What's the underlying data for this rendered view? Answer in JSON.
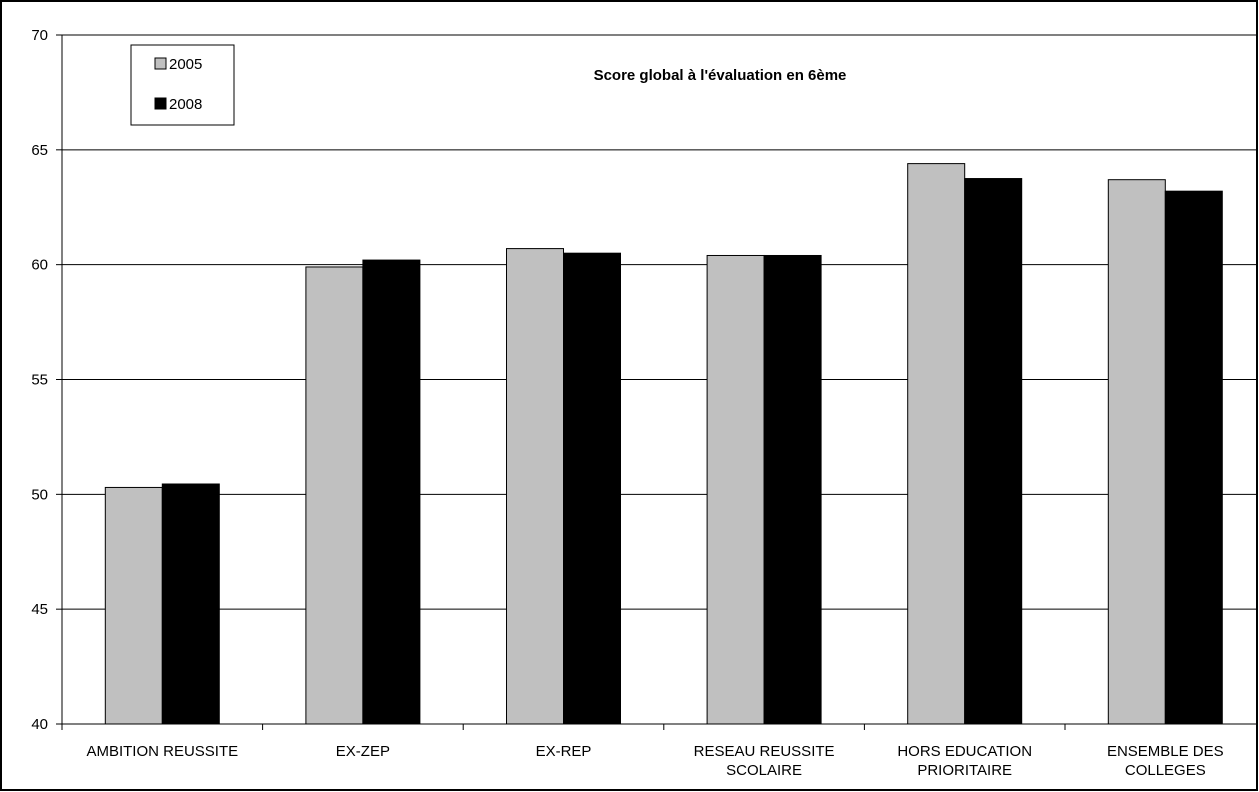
{
  "chart_data": {
    "type": "bar",
    "title": "Score global à l'évaluation en 6ème",
    "xlabel": "",
    "ylabel": "",
    "ylim": [
      40,
      70
    ],
    "yticks": [
      40,
      45,
      50,
      55,
      60,
      65,
      70
    ],
    "grid": true,
    "legend_position": "top-left",
    "categories": [
      [
        "AMBITION REUSSITE"
      ],
      [
        "EX-ZEP"
      ],
      [
        "EX-REP"
      ],
      [
        "RESEAU REUSSITE",
        "SCOLAIRE"
      ],
      [
        "HORS EDUCATION",
        "PRIORITAIRE"
      ],
      [
        "ENSEMBLE DES",
        "COLLEGES"
      ]
    ],
    "series": [
      {
        "name": "2005",
        "color": "#c0c0c0",
        "values": [
          50.3,
          59.9,
          60.7,
          60.4,
          64.4,
          63.7
        ]
      },
      {
        "name": "2008",
        "color": "#000000",
        "values": [
          50.45,
          60.2,
          60.5,
          60.4,
          63.75,
          63.2
        ]
      }
    ]
  }
}
